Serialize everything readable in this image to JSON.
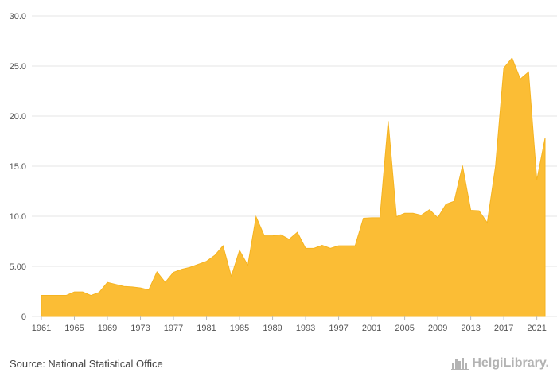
{
  "source_text": "Source: National Statistical Office",
  "logo_text": "HelgiLibrary.",
  "colors": {
    "area_fill": "#fbbd35",
    "area_stroke": "#f5b320",
    "grid": "#e6e6e6",
    "text": "#555555"
  },
  "chart_data": {
    "type": "area",
    "title": "",
    "xlabel": "",
    "ylabel": "",
    "xlim": [
      1961,
      2022
    ],
    "ylim": [
      0,
      30
    ],
    "grid": true,
    "y_ticks": [
      "0",
      "5.00",
      "10.0",
      "15.0",
      "20.0",
      "25.0",
      "30.0"
    ],
    "y_tick_values": [
      0,
      5,
      10,
      15,
      20,
      25,
      30
    ],
    "x_ticks": [
      1961,
      1965,
      1969,
      1973,
      1977,
      1981,
      1985,
      1989,
      1993,
      1997,
      2001,
      2005,
      2009,
      2013,
      2017,
      2021
    ],
    "x": [
      1961,
      1962,
      1963,
      1964,
      1965,
      1966,
      1967,
      1968,
      1969,
      1970,
      1971,
      1972,
      1973,
      1974,
      1975,
      1976,
      1977,
      1978,
      1979,
      1980,
      1981,
      1982,
      1983,
      1984,
      1985,
      1986,
      1987,
      1988,
      1989,
      1990,
      1991,
      1992,
      1993,
      1994,
      1995,
      1996,
      1997,
      1998,
      1999,
      2000,
      2001,
      2002,
      2003,
      2004,
      2005,
      2006,
      2007,
      2008,
      2009,
      2010,
      2011,
      2012,
      2013,
      2014,
      2015,
      2016,
      2017,
      2018,
      2019,
      2020,
      2021,
      2022
    ],
    "values": [
      2.1,
      2.1,
      2.1,
      2.1,
      2.45,
      2.45,
      2.1,
      2.4,
      3.4,
      3.2,
      3.0,
      2.95,
      2.85,
      2.65,
      4.45,
      3.4,
      4.4,
      4.7,
      4.9,
      5.2,
      5.5,
      6.1,
      7.05,
      4.0,
      6.6,
      5.1,
      9.95,
      8.05,
      8.05,
      8.15,
      7.7,
      8.4,
      6.8,
      6.8,
      7.1,
      6.8,
      7.05,
      7.05,
      7.05,
      9.8,
      9.85,
      9.85,
      19.5,
      9.95,
      10.3,
      10.3,
      10.1,
      10.65,
      9.85,
      11.2,
      11.5,
      15.05,
      10.6,
      10.55,
      9.35,
      15.0,
      24.8,
      25.8,
      23.7,
      24.4,
      13.6,
      17.8
    ]
  }
}
